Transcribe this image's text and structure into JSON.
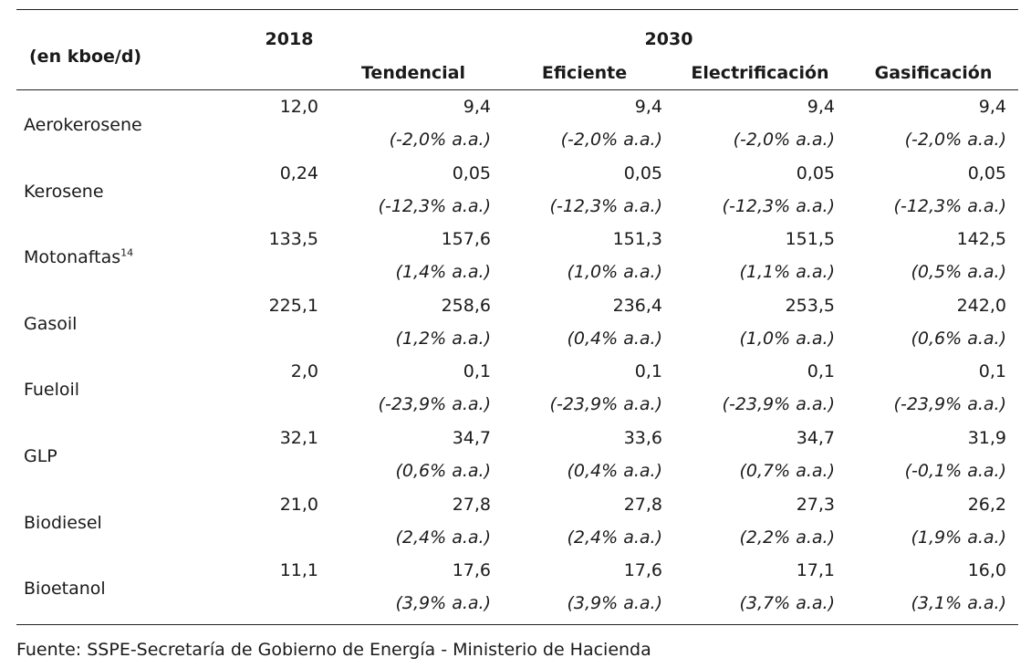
{
  "header": {
    "unit_label": "(en kboe/d)",
    "year_base": "2018",
    "year_target": "2030",
    "scenarios": [
      "Tendencial",
      "Eficiente",
      "Electrificación",
      "Gasificación"
    ]
  },
  "rows": [
    {
      "label": "Aerokerosene",
      "sup": "",
      "v2018": "12,0",
      "values": [
        "9,4",
        "9,4",
        "9,4",
        "9,4"
      ],
      "growth": [
        "(-2,0% a.a.)",
        "(-2,0% a.a.)",
        "(-2,0% a.a.)",
        "(-2,0% a.a.)"
      ]
    },
    {
      "label": "Kerosene",
      "sup": "",
      "v2018": "0,24",
      "values": [
        "0,05",
        "0,05",
        "0,05",
        "0,05"
      ],
      "growth": [
        "(-12,3% a.a.)",
        "(-12,3% a.a.)",
        "(-12,3% a.a.)",
        "(-12,3% a.a.)"
      ]
    },
    {
      "label": "Motonaftas",
      "sup": "14",
      "v2018": "133,5",
      "values": [
        "157,6",
        "151,3",
        "151,5",
        "142,5"
      ],
      "growth": [
        "(1,4% a.a.)",
        "(1,0% a.a.)",
        "(1,1% a.a.)",
        "(0,5% a.a.)"
      ]
    },
    {
      "label": "Gasoil",
      "sup": "",
      "v2018": "225,1",
      "values": [
        "258,6",
        "236,4",
        "253,5",
        "242,0"
      ],
      "growth": [
        "(1,2% a.a.)",
        "(0,4% a.a.)",
        "(1,0% a.a.)",
        "(0,6% a.a.)"
      ]
    },
    {
      "label": "Fueloil",
      "sup": "",
      "v2018": "2,0",
      "values": [
        "0,1",
        "0,1",
        "0,1",
        "0,1"
      ],
      "growth": [
        "(-23,9% a.a.)",
        "(-23,9% a.a.)",
        "(-23,9% a.a.)",
        "(-23,9% a.a.)"
      ]
    },
    {
      "label": "GLP",
      "sup": "",
      "v2018": "32,1",
      "values": [
        "34,7",
        "33,6",
        "34,7",
        "31,9"
      ],
      "growth": [
        "(0,6% a.a.)",
        "(0,4% a.a.)",
        "(0,7% a.a.)",
        "(-0,1% a.a.)"
      ]
    },
    {
      "label": "Biodiesel",
      "sup": "",
      "v2018": "21,0",
      "values": [
        "27,8",
        "27,8",
        "27,3",
        "26,2"
      ],
      "growth": [
        "(2,4% a.a.)",
        "(2,4% a.a.)",
        "(2,2% a.a.)",
        "(1,9% a.a.)"
      ]
    },
    {
      "label": "Bioetanol",
      "sup": "",
      "v2018": "11,1",
      "values": [
        "17,6",
        "17,6",
        "17,1",
        "16,0"
      ],
      "growth": [
        "(3,9% a.a.)",
        "(3,9% a.a.)",
        "(3,7% a.a.)",
        "(3,1% a.a.)"
      ]
    }
  ],
  "source": "Fuente: SSPE-Secretaría de Gobierno de Energía - Ministerio de Hacienda"
}
